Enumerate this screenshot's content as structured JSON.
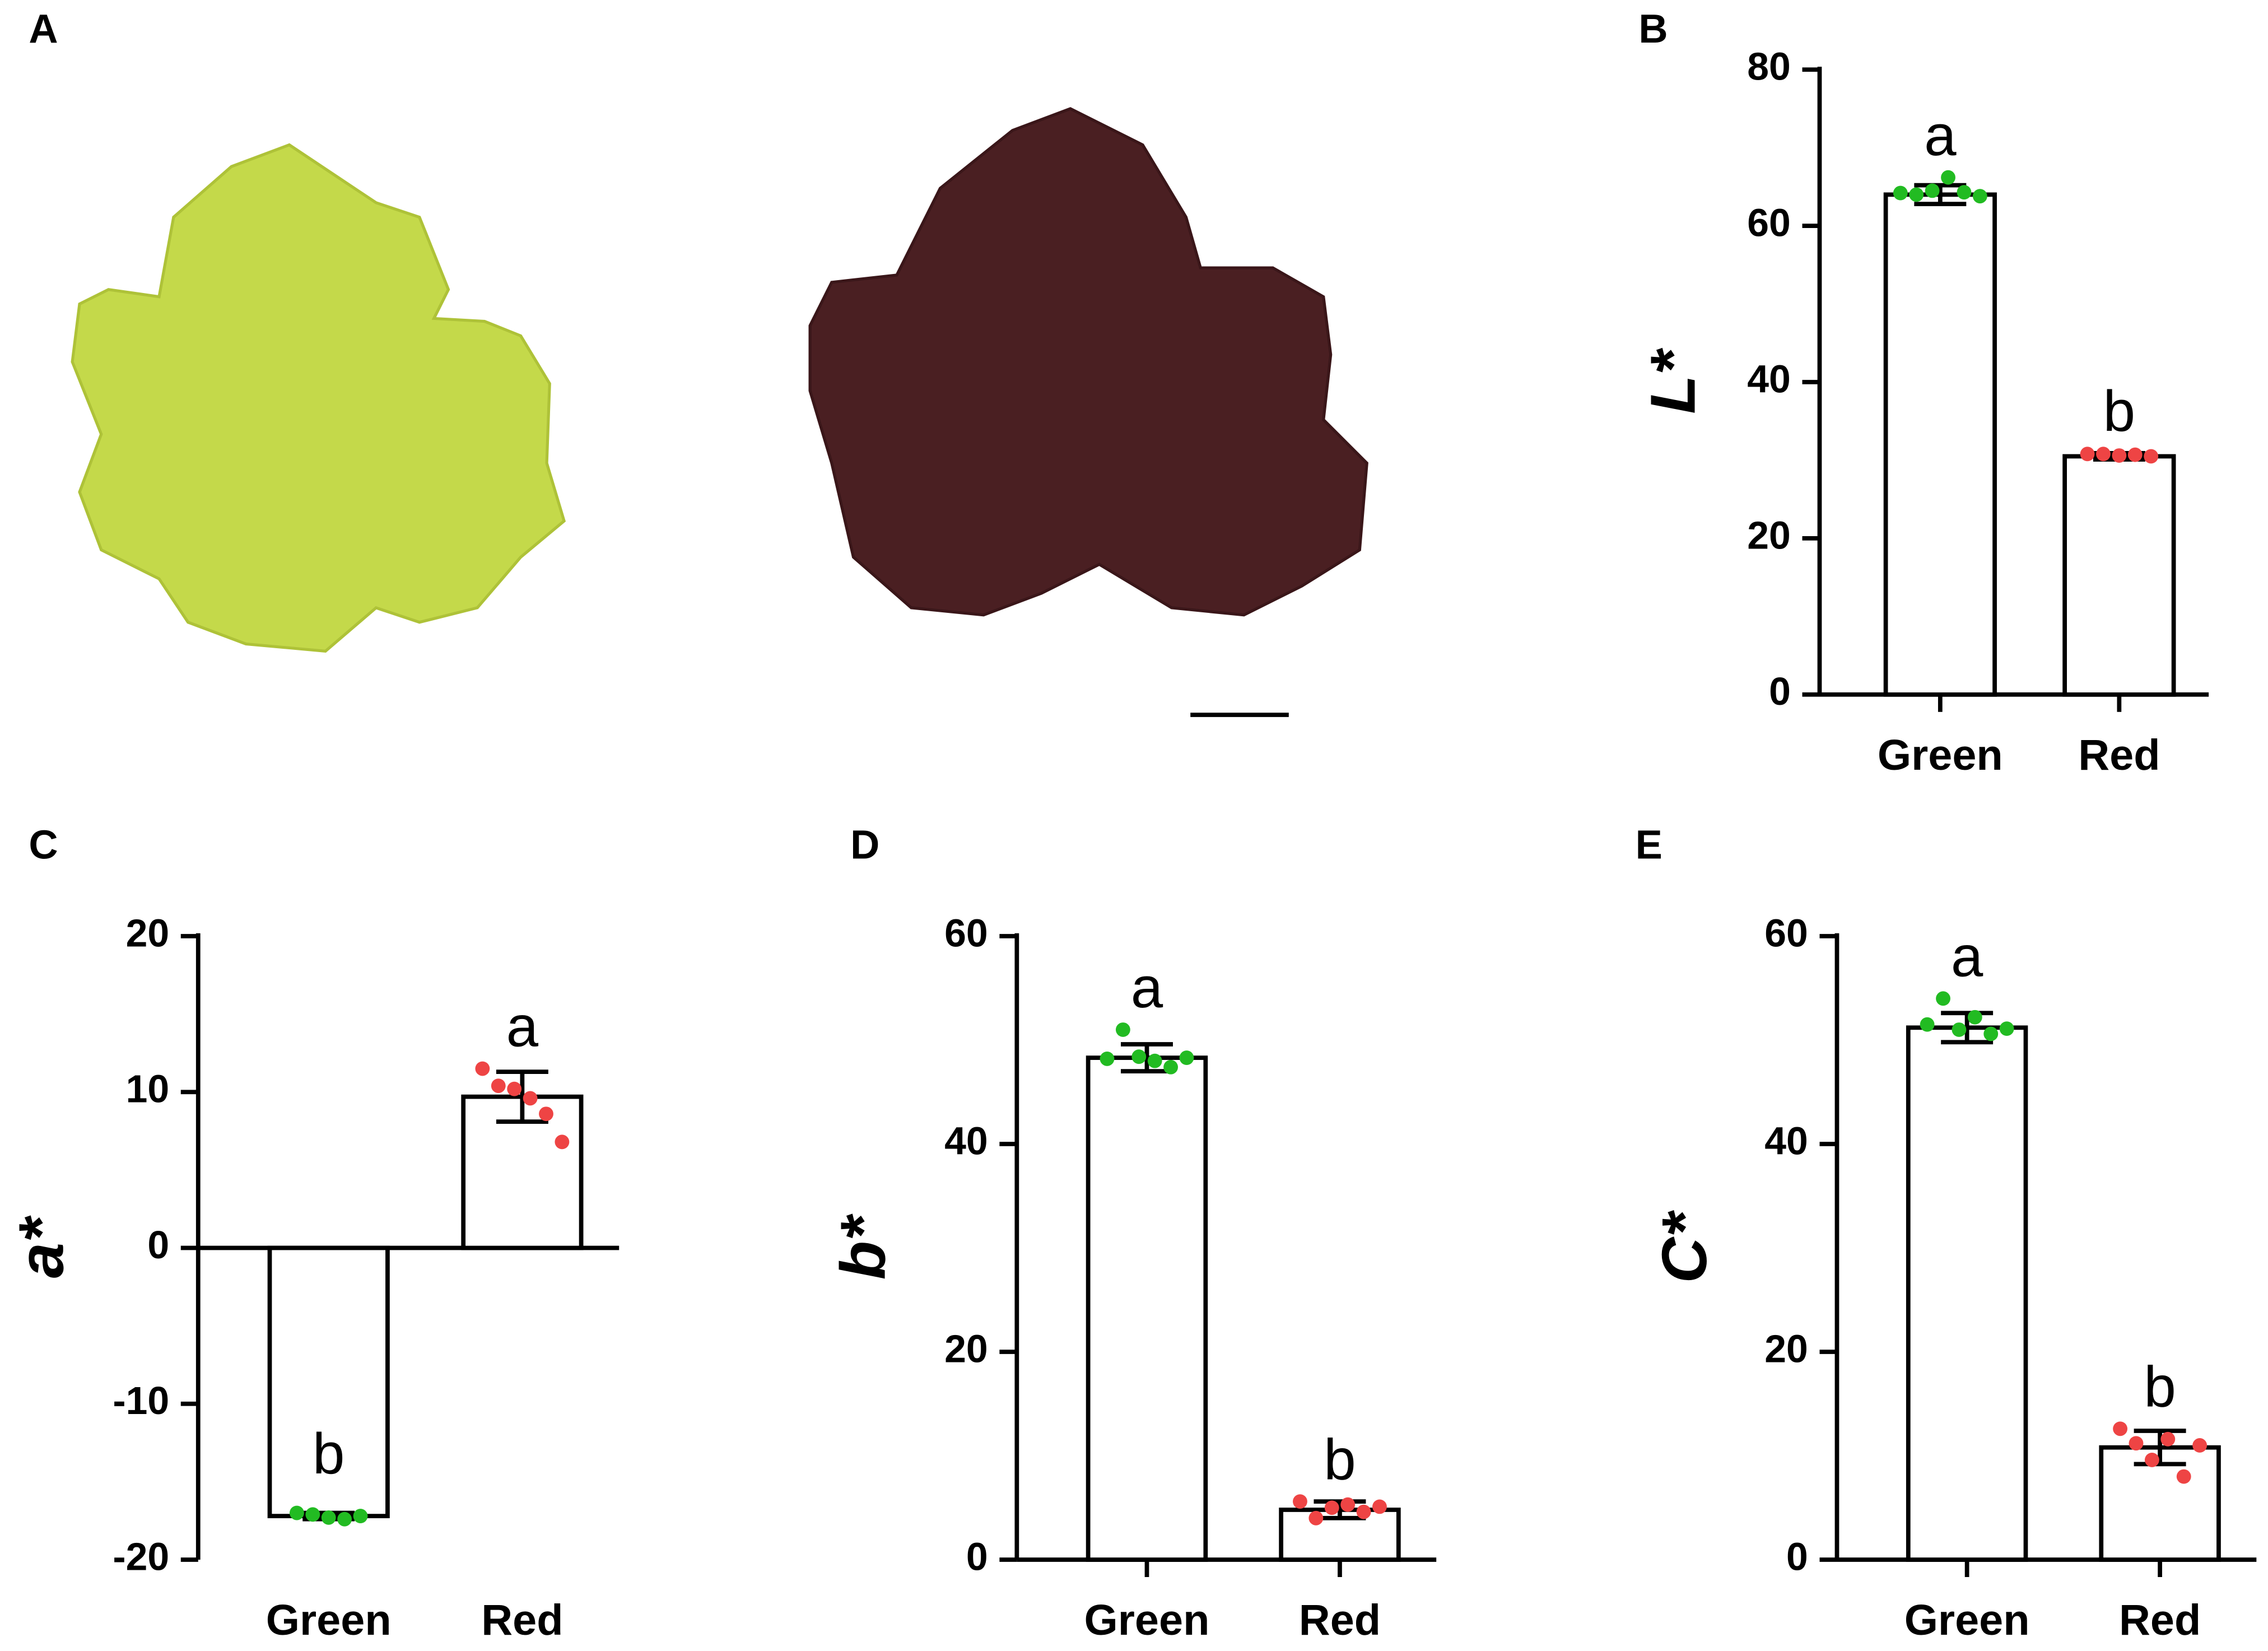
{
  "figure_panel_label": "A",
  "chart_data": [
    {
      "type": "bar",
      "panel_label": "B",
      "y_label": "L*",
      "categories": [
        "Green",
        "Red"
      ],
      "values": [
        64,
        30.5
      ],
      "errors": [
        1.2,
        0.4
      ],
      "letters": [
        "a",
        "b"
      ],
      "points": [
        [
          64.2,
          64.0,
          64.5,
          66.2,
          64.3,
          63.8
        ],
        [
          30.8,
          30.8,
          30.6,
          30.7,
          30.5
        ]
      ],
      "point_colors": [
        "#22bb22",
        "#ee4444"
      ],
      "color": "#000000",
      "ylim": [
        0,
        80
      ],
      "yticks": [
        0,
        20,
        40,
        60,
        80
      ]
    },
    {
      "type": "bar",
      "panel_label": "C",
      "y_label": "a*",
      "categories": [
        "Green",
        "Red"
      ],
      "values": [
        -17.2,
        9.7
      ],
      "errors": [
        0.2,
        1.6
      ],
      "letters": [
        "b",
        "a"
      ],
      "points": [
        [
          -17.0,
          -17.1,
          -17.3,
          -17.4,
          -17.2
        ],
        [
          11.5,
          10.4,
          10.2,
          9.6,
          8.6,
          6.8
        ]
      ],
      "point_colors": [
        "#22bb22",
        "#ee4444"
      ],
      "color": "#000000",
      "ylim": [
        -20,
        20
      ],
      "yticks": [
        -20,
        -10,
        0,
        10,
        20
      ]
    },
    {
      "type": "bar",
      "panel_label": "D",
      "y_label": "b*",
      "categories": [
        "Green",
        "Red"
      ],
      "values": [
        48.3,
        4.8
      ],
      "errors": [
        1.3,
        0.8
      ],
      "letters": [
        "a",
        "b"
      ],
      "points": [
        [
          48.2,
          51.0,
          48.4,
          48.0,
          47.4,
          48.3
        ],
        [
          5.6,
          4.0,
          5.0,
          5.3,
          4.6,
          5.1
        ]
      ],
      "point_colors": [
        "#22bb22",
        "#ee4444"
      ],
      "color": "#000000",
      "ylim": [
        0,
        60
      ],
      "yticks": [
        0,
        20,
        40,
        60
      ]
    },
    {
      "type": "bar",
      "panel_label": "E",
      "y_label": "C*",
      "categories": [
        "Green",
        "Red"
      ],
      "values": [
        51.2,
        10.8
      ],
      "errors": [
        1.4,
        1.6
      ],
      "letters": [
        "a",
        "b"
      ],
      "points": [
        [
          51.5,
          54.0,
          51.0,
          52.2,
          50.6,
          51.1
        ],
        [
          12.6,
          11.2,
          9.6,
          11.6,
          8.0,
          11.0
        ]
      ],
      "point_colors": [
        "#22bb22",
        "#ee4444"
      ],
      "color": "#000000",
      "ylim": [
        0,
        60
      ],
      "yticks": [
        0,
        20,
        40,
        60
      ]
    }
  ]
}
